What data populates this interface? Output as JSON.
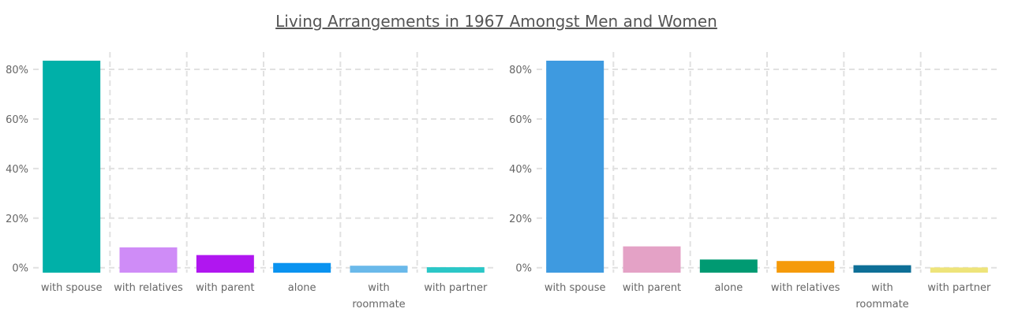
{
  "title": "Living Arrangements in 1967 Amongst Men and Women",
  "chart_data": [
    {
      "type": "bar",
      "categories": [
        "with spouse",
        "with relatives",
        "with parent",
        "alone",
        "with roommate",
        "with partner"
      ],
      "category_lines": [
        [
          "with spouse"
        ],
        [
          "with relatives"
        ],
        [
          "with parent"
        ],
        [
          "alone"
        ],
        [
          "with",
          "roommate"
        ],
        [
          "with partner"
        ]
      ],
      "values": [
        83.5,
        8.2,
        5.1,
        1.9,
        0.8,
        0.2
      ],
      "colors": [
        "#00B0A8",
        "#CF8CF7",
        "#B016F0",
        "#0A93F0",
        "#6AB9EA",
        "#2BC7C7"
      ],
      "ylim": [
        -2,
        87
      ],
      "yticks": [
        0,
        20,
        40,
        60,
        80
      ],
      "ytick_labels": [
        "0%",
        "20%",
        "40%",
        "60%",
        "80%"
      ]
    },
    {
      "type": "bar",
      "categories": [
        "with spouse",
        "with parent",
        "alone",
        "with relatives",
        "with roommate",
        "with partner"
      ],
      "category_lines": [
        [
          "with spouse"
        ],
        [
          "with parent"
        ],
        [
          "alone"
        ],
        [
          "with relatives"
        ],
        [
          "with",
          "roommate"
        ],
        [
          "with partner"
        ]
      ],
      "values": [
        83.5,
        8.6,
        3.3,
        2.7,
        1.0,
        0.1
      ],
      "colors": [
        "#3E9AE0",
        "#E4A2C6",
        "#009A72",
        "#F59A0A",
        "#0E6F97",
        "#EEE47A"
      ],
      "ylim": [
        -2,
        87
      ],
      "yticks": [
        0,
        20,
        40,
        60,
        80
      ],
      "ytick_labels": [
        "0%",
        "20%",
        "40%",
        "60%",
        "80%"
      ]
    }
  ]
}
